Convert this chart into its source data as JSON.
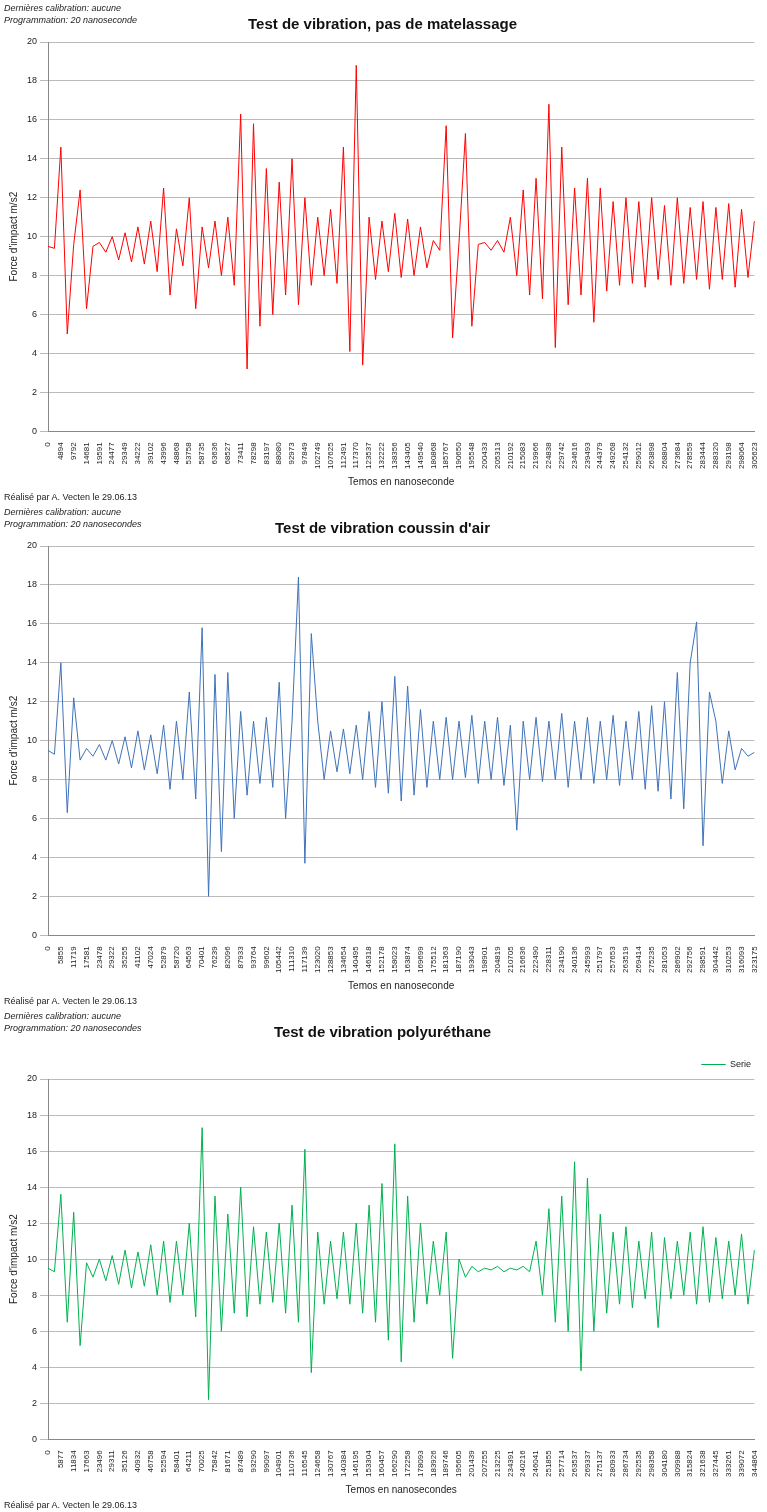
{
  "chart_data": [
    {
      "type": "line",
      "title": "Test de vibration, pas de matelassage",
      "xlabel": "Temos en nanoseconde",
      "ylabel": "Force d'impact m/s2",
      "annotations": [
        "Dernières calibration:  aucune",
        "Programmation: 20 nanoseconde",
        "Réalisé par A. Vecten le 29.06.13"
      ],
      "categories": [
        "0",
        null,
        "4894",
        null,
        "9792",
        null,
        "14681",
        null,
        "19591",
        null,
        "24477",
        null,
        "29349",
        null,
        "34222",
        null,
        "39102",
        null,
        "43996",
        null,
        "48868",
        null,
        "53758",
        null,
        "58735",
        null,
        "63636",
        null,
        "68527",
        null,
        "73411",
        null,
        "78298",
        null,
        "83197",
        null,
        "88080",
        null,
        "92973",
        null,
        "97849",
        null,
        "102749",
        null,
        "107625",
        null,
        "112491",
        null,
        "117370",
        null,
        "123537",
        null,
        "132222",
        null,
        "138356",
        null,
        "143405",
        null,
        "149540",
        null,
        "180868",
        null,
        "185767",
        null,
        "190650",
        null,
        "195548",
        null,
        "200433",
        null,
        "205313",
        null,
        "210192",
        null,
        "215083",
        null,
        "219966",
        null,
        "224838",
        null,
        "229742",
        null,
        "234616",
        null,
        "239493",
        null,
        "244379",
        null,
        "249268",
        null,
        "254132",
        null,
        "259012",
        null,
        "263898",
        null,
        "268804",
        null,
        "273684",
        null,
        "278559",
        null,
        "283444",
        null,
        "288320",
        null,
        "293198",
        null,
        "298064",
        null,
        "305623"
      ],
      "series": [
        {
          "color": "#ff0000",
          "values": [
            9.5,
            9.4,
            14.6,
            5.0,
            9.6,
            12.4,
            6.3,
            9.5,
            9.7,
            9.2,
            10.0,
            8.8,
            10.2,
            8.7,
            10.5,
            8.6,
            10.8,
            8.2,
            12.5,
            7.0,
            10.4,
            8.5,
            12.0,
            6.3,
            10.5,
            8.4,
            10.8,
            8.0,
            11.0,
            7.5,
            16.3,
            3.2,
            15.8,
            5.4,
            13.5,
            6.0,
            12.8,
            7.0,
            14.0,
            6.5,
            12.0,
            7.5,
            11.0,
            8.0,
            11.4,
            7.6,
            14.6,
            4.1,
            18.8,
            3.4,
            11.0,
            7.8,
            10.8,
            8.2,
            11.2,
            7.9,
            10.9,
            8.0,
            10.5,
            8.4,
            9.8,
            9.3,
            15.7,
            4.8,
            9.7,
            15.3,
            5.4,
            9.6,
            9.7,
            9.3,
            9.8,
            9.2,
            11.0,
            8.0,
            12.4,
            7.0,
            13.0,
            6.8,
            16.8,
            4.3,
            14.6,
            6.5,
            12.5,
            7.0,
            13.0,
            5.6,
            12.5,
            7.2,
            11.8,
            7.5,
            12.0,
            7.6,
            11.8,
            7.4,
            12.0,
            7.8,
            11.6,
            7.5,
            12.0,
            7.6,
            11.5,
            7.8,
            11.8,
            7.3,
            11.5,
            7.8,
            11.7,
            7.4,
            11.4,
            7.9,
            10.8
          ]
        }
      ],
      "ylim": [
        0,
        20
      ],
      "yticks": [
        0,
        2,
        4,
        6,
        8,
        10,
        12,
        14,
        16,
        18,
        20
      ],
      "grid": "y"
    },
    {
      "type": "line",
      "title": "Test de vibration coussin d'air",
      "xlabel": "Temos en nanoseconde",
      "ylabel": "Force d'impact m/s2",
      "annotations": [
        "Dernières calibration:  aucune",
        "Programmation: 20 nanosecondes",
        "Réalisé par A. Vecten le 29.06.13"
      ],
      "categories": [
        "0",
        null,
        "5855",
        null,
        "11719",
        null,
        "17581",
        null,
        "23478",
        null,
        "29322",
        null,
        "35255",
        null,
        "41102",
        null,
        "47024",
        null,
        "52879",
        null,
        "58720",
        null,
        "64563",
        null,
        "70401",
        null,
        "76239",
        null,
        "82096",
        null,
        "87933",
        null,
        "93764",
        null,
        "99602",
        null,
        "105442",
        null,
        "111310",
        null,
        "117139",
        null,
        "123020",
        null,
        "128853",
        null,
        "134654",
        null,
        "140495",
        null,
        "146318",
        null,
        "152178",
        null,
        "158023",
        null,
        "163874",
        null,
        "169699",
        null,
        "175512",
        null,
        "181363",
        null,
        "187190",
        null,
        "193043",
        null,
        "198901",
        null,
        "204819",
        null,
        "210705",
        null,
        "216636",
        null,
        "222490",
        null,
        "228311",
        null,
        "234190",
        null,
        "240136",
        null,
        "245993",
        null,
        "251797",
        null,
        "257653",
        null,
        "263519",
        null,
        "269414",
        null,
        "275235",
        null,
        "281053",
        null,
        "286902",
        null,
        "292756",
        null,
        "298591",
        null,
        "304442",
        null,
        "310253",
        null,
        "316093",
        null,
        "323175"
      ],
      "series": [
        {
          "color": "#3f72b8",
          "values": [
            9.5,
            9.3,
            14.0,
            6.3,
            12.2,
            9.0,
            9.6,
            9.2,
            9.8,
            9.0,
            10.0,
            8.8,
            10.2,
            8.6,
            10.5,
            8.5,
            10.3,
            8.3,
            10.8,
            7.5,
            11.0,
            8.0,
            12.5,
            7.0,
            15.8,
            2.0,
            13.4,
            4.3,
            13.5,
            6.0,
            11.5,
            7.2,
            11.0,
            7.8,
            11.2,
            7.6,
            13.0,
            6.0,
            11.0,
            18.4,
            3.7,
            15.5,
            11.0,
            8.0,
            10.5,
            8.4,
            10.6,
            8.3,
            10.8,
            8.0,
            11.5,
            7.6,
            12.0,
            7.3,
            13.3,
            6.9,
            12.8,
            7.2,
            11.6,
            7.6,
            11.0,
            8.0,
            11.2,
            8.0,
            11.0,
            8.1,
            11.3,
            7.8,
            11.0,
            8.0,
            11.2,
            7.7,
            10.8,
            5.4,
            11.0,
            8.0,
            11.2,
            7.9,
            11.0,
            8.0,
            11.4,
            7.6,
            11.0,
            8.0,
            11.2,
            7.8,
            11.0,
            8.0,
            11.3,
            7.7,
            11.0,
            8.0,
            11.5,
            7.5,
            11.8,
            7.4,
            12.0,
            7.0,
            13.5,
            6.5,
            14.0,
            16.1,
            4.6,
            12.5,
            11.0,
            7.8,
            10.5,
            8.5,
            9.6,
            9.2,
            9.4
          ]
        }
      ],
      "ylim": [
        0,
        20
      ],
      "yticks": [
        0,
        2,
        4,
        6,
        8,
        10,
        12,
        14,
        16,
        18,
        20
      ],
      "grid": "y"
    },
    {
      "type": "line",
      "title": "Test de vibration polyuréthane",
      "xlabel": "Temos en nanosecondes",
      "ylabel": "Force d'impact m/s2",
      "annotations": [
        "Dernières calibration:  aucune",
        "Programmation: 20 nanosecondes",
        "Réalisé par A. Vecten le 29.06.13"
      ],
      "categories": [
        "0",
        null,
        "5877",
        null,
        "11834",
        null,
        "17663",
        null,
        "23496",
        null,
        "29311",
        null,
        "35126",
        null,
        "40932",
        null,
        "46758",
        null,
        "52594",
        null,
        "58401",
        null,
        "64211",
        null,
        "70025",
        null,
        "75842",
        null,
        "81671",
        null,
        "87489",
        null,
        "93290",
        null,
        "99097",
        null,
        "104901",
        null,
        "110736",
        null,
        "116545",
        null,
        "124658",
        null,
        "130767",
        null,
        "140384",
        null,
        "146195",
        null,
        "153304",
        null,
        "160457",
        null,
        "166290",
        null,
        "172258",
        null,
        "178093",
        null,
        "183926",
        null,
        "189746",
        null,
        "195605",
        null,
        "201439",
        null,
        "207255",
        null,
        "213225",
        null,
        "234391",
        null,
        "240216",
        null,
        "246041",
        null,
        "251855",
        null,
        "257714",
        null,
        "263537",
        null,
        "269337",
        null,
        "275137",
        null,
        "280933",
        null,
        "286734",
        null,
        "292535",
        null,
        "298358",
        null,
        "304180",
        null,
        "309988",
        null,
        "315824",
        null,
        "321638",
        null,
        "327445",
        null,
        "333261",
        null,
        "339072",
        null,
        "344864"
      ],
      "series": [
        {
          "name": "Serie",
          "color": "#00b050",
          "values": [
            9.5,
            9.3,
            13.6,
            6.5,
            12.6,
            5.2,
            9.8,
            9.0,
            10.0,
            8.8,
            10.2,
            8.6,
            10.5,
            8.4,
            10.4,
            8.5,
            10.8,
            8.0,
            11.0,
            7.6,
            11.0,
            8.0,
            12.0,
            6.8,
            17.3,
            2.2,
            13.5,
            6.0,
            12.5,
            7.0,
            14.0,
            6.8,
            11.8,
            7.5,
            11.5,
            7.6,
            12.0,
            7.0,
            13.0,
            6.5,
            16.1,
            3.7,
            11.5,
            7.5,
            11.0,
            7.8,
            11.5,
            7.5,
            12.0,
            7.0,
            13.0,
            6.5,
            14.2,
            5.5,
            16.4,
            4.3,
            13.5,
            6.5,
            12.0,
            7.5,
            11.0,
            8.0,
            11.5,
            4.5,
            10.0,
            9.0,
            9.6,
            9.3,
            9.5,
            9.4,
            9.6,
            9.3,
            9.5,
            9.4,
            9.6,
            9.3,
            11.0,
            8.0,
            12.8,
            6.5,
            13.5,
            6.0,
            15.4,
            3.8,
            14.5,
            6.0,
            12.5,
            7.0,
            11.5,
            7.5,
            11.8,
            7.3,
            11.0,
            7.8,
            11.5,
            6.2,
            11.2,
            7.8,
            11.0,
            8.0,
            11.5,
            7.5,
            11.8,
            7.6,
            11.2,
            7.8,
            11.0,
            8.0,
            11.4,
            7.5,
            10.5
          ]
        }
      ],
      "ylim": [
        0,
        20
      ],
      "yticks": [
        0,
        2,
        4,
        6,
        8,
        10,
        12,
        14,
        16,
        18,
        20
      ],
      "grid": "y",
      "legend": "top right"
    }
  ]
}
